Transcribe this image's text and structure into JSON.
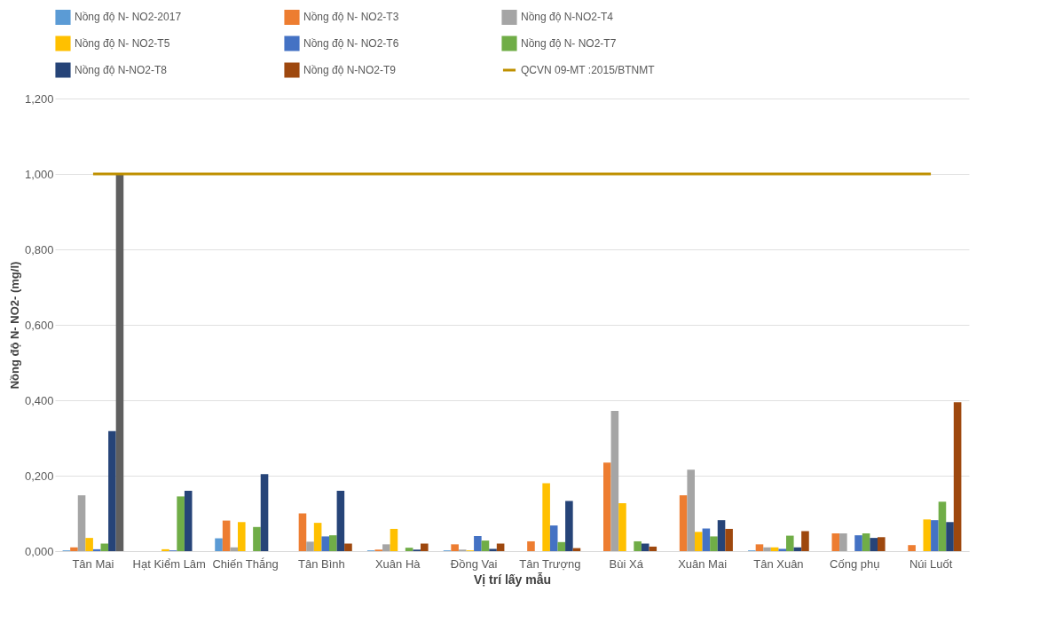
{
  "chart_data": {
    "type": "bar",
    "xlabel": "Vị trí lấy mẫu",
    "ylabel": "Nồng độ N- NO2- (mg/l)",
    "categories": [
      "Tân Mai",
      "Hạt Kiểm Lâm",
      "Chiến Thắng",
      "Tân Bình",
      "Xuân Hà",
      "Đồng Vai",
      "Tân Trượng",
      "Bùi Xá",
      "Xuân Mai",
      "Tân Xuân",
      "Cống phụ",
      "Núi Luốt"
    ],
    "series": [
      {
        "name": "Nồng độ N- NO2-2017",
        "color": "#5b9bd5",
        "values": [
          0.002,
          0,
          0.034,
          0,
          0.002,
          0.002,
          0,
          0,
          0,
          0.002,
          0,
          0
        ]
      },
      {
        "name": "Nồng độ N- NO2-T3",
        "color": "#ed7d31",
        "values": [
          0.01,
          0,
          0.081,
          0.1,
          0.004,
          0.018,
          0.026,
          0.235,
          0.148,
          0.018,
          0.047,
          0.016
        ]
      },
      {
        "name": "Nồng độ N-NO2-T4",
        "color": "#a5a5a5",
        "values": [
          0.148,
          0,
          0.01,
          0.025,
          0.018,
          0.004,
          0,
          0.372,
          0.216,
          0.01,
          0.047,
          null
        ]
      },
      {
        "name": "Nồng độ N- NO2-T5",
        "color": "#ffc000",
        "values": [
          0.035,
          0.005,
          0.077,
          0.075,
          0.059,
          0.002,
          0.18,
          0.127,
          0.051,
          0.01,
          0,
          0.084
        ]
      },
      {
        "name": "Nồng độ N- NO2-T6",
        "color": "#4472c4",
        "values": [
          0.005,
          0.002,
          0,
          0.039,
          0,
          0.04,
          0.068,
          0,
          0.06,
          0.006,
          0.042,
          0.082
        ]
      },
      {
        "name": "Nồng độ N- NO2-T7",
        "color": "#70ad47",
        "values": [
          0.02,
          0.145,
          0.064,
          0.042,
          0.009,
          0.028,
          0.024,
          0.026,
          0.039,
          0.041,
          0.047,
          0.131
        ]
      },
      {
        "name": "Nồng độ N-NO2-T8",
        "color": "#264478",
        "values": [
          0.318,
          0.16,
          0.204,
          0.16,
          0.004,
          0.006,
          0.133,
          0.02,
          0.082,
          0.01,
          0.035,
          0.077
        ]
      },
      {
        "name": "Nồng độ N-NO2-T9",
        "color": "#9e480e",
        "colors": [
          "#5f5f5f",
          null,
          null,
          null,
          null,
          null,
          null,
          null,
          null,
          null,
          null,
          null
        ],
        "values": [
          1.0,
          0,
          0,
          0.02,
          0.02,
          0.02,
          0.008,
          0.012,
          0.059,
          0.053,
          0.037,
          0.395
        ]
      },
      {
        "name": "QCVN 09-MT :2015/BTNMT",
        "type": "line",
        "color": "#bf9000",
        "values": [
          1.0,
          1.0,
          1.0,
          1.0,
          1.0,
          1.0,
          1.0,
          1.0,
          1.0,
          1.0,
          1.0,
          1.0
        ]
      }
    ],
    "ylim": [
      0,
      1.2
    ],
    "yticks": [
      {
        "value": 0,
        "label": "0,000"
      },
      {
        "value": 0.2,
        "label": "0,200"
      },
      {
        "value": 0.4,
        "label": "0,400"
      },
      {
        "value": 0.6,
        "label": "0,600"
      },
      {
        "value": 0.8,
        "label": "0,800"
      },
      {
        "value": 1.0,
        "label": "1,000"
      },
      {
        "value": 1.2,
        "label": "1,200"
      }
    ],
    "grid": "y",
    "legend": "top"
  }
}
